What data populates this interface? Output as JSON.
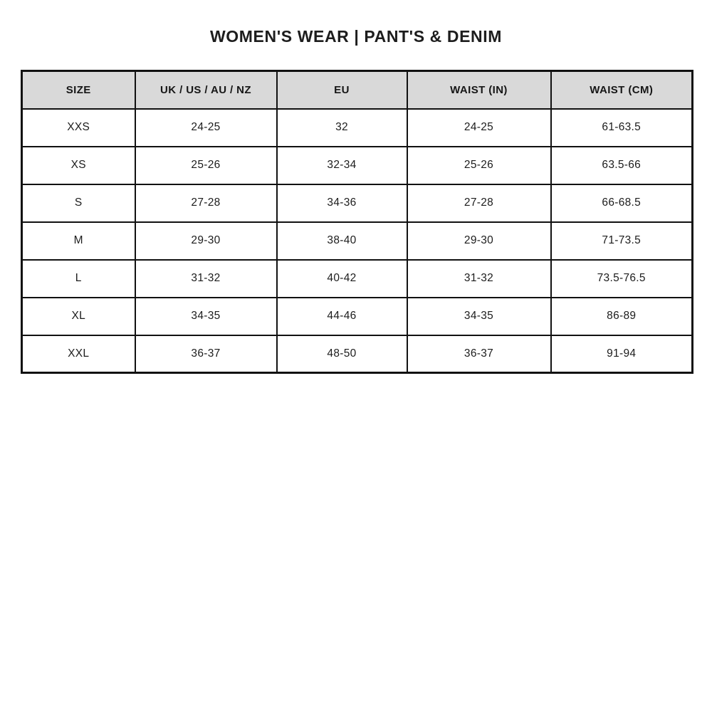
{
  "title": "WOMEN'S WEAR | PANT'S & DENIM",
  "colors": {
    "header_bg": "#d9d9d9",
    "border": "#111111",
    "text": "#1c1c1c",
    "background": "#ffffff"
  },
  "table": {
    "headers": [
      "SIZE",
      "UK / US / AU / NZ",
      "EU",
      "WAIST (IN)",
      "WAIST (CM)"
    ],
    "rows": [
      [
        "XXS",
        "24-25",
        "32",
        "24-25",
        "61-63.5"
      ],
      [
        "XS",
        "25-26",
        "32-34",
        "25-26",
        "63.5-66"
      ],
      [
        "S",
        "27-28",
        "34-36",
        "27-28",
        "66-68.5"
      ],
      [
        "M",
        "29-30",
        "38-40",
        "29-30",
        "71-73.5"
      ],
      [
        "L",
        "31-32",
        "40-42",
        "31-32",
        "73.5-76.5"
      ],
      [
        "XL",
        "34-35",
        "44-46",
        "34-35",
        "86-89"
      ],
      [
        "XXL",
        "36-37",
        "48-50",
        "36-37",
        "91-94"
      ]
    ]
  },
  "chart_data": {
    "type": "table",
    "title": "WOMEN'S WEAR | PANT'S & DENIM",
    "columns": [
      "SIZE",
      "UK / US / AU / NZ",
      "EU",
      "WAIST (IN)",
      "WAIST (CM)"
    ],
    "rows": [
      [
        "XXS",
        "24-25",
        "32",
        "24-25",
        "61-63.5"
      ],
      [
        "XS",
        "25-26",
        "32-34",
        "25-26",
        "63.5-66"
      ],
      [
        "S",
        "27-28",
        "34-36",
        "27-28",
        "66-68.5"
      ],
      [
        "M",
        "29-30",
        "38-40",
        "29-30",
        "71-73.5"
      ],
      [
        "L",
        "31-32",
        "40-42",
        "31-32",
        "73.5-76.5"
      ],
      [
        "XL",
        "34-35",
        "44-46",
        "34-35",
        "86-89"
      ],
      [
        "XXL",
        "36-37",
        "48-50",
        "36-37",
        "91-94"
      ]
    ],
    "layout": {
      "header_background": "#d9d9d9",
      "grid": true,
      "text_align": "center"
    }
  }
}
